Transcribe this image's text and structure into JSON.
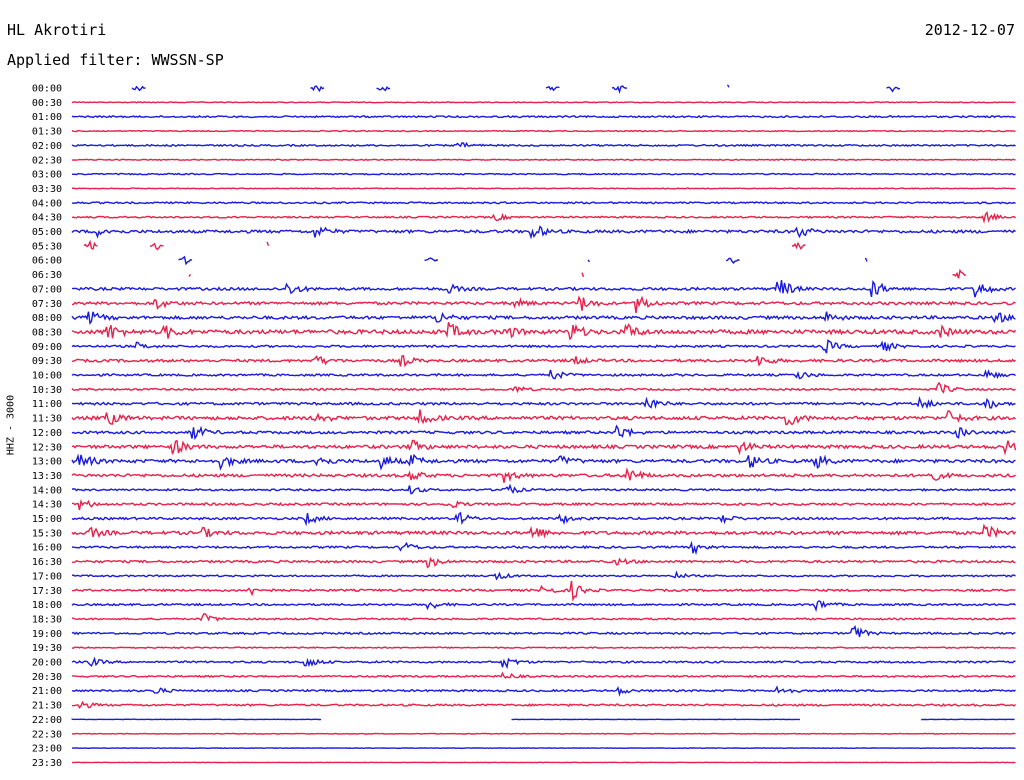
{
  "header": {
    "station": "HL Akrotiri",
    "date": "2012-12-07",
    "filter": "Applied filter: WWSSN-SP"
  },
  "channel_label": "HHZ - 3000",
  "colors": {
    "blue": "#1a1adc",
    "red": "#e8204a"
  },
  "chart_data": {
    "type": "line",
    "title": "HL Akrotiri",
    "subtitle": "Applied filter: WWSSN-SP",
    "ylabel": "HHZ - 3000",
    "xlabel": "",
    "grid": false,
    "legend": "none",
    "y_tick_labels": [
      "00:00",
      "00:30",
      "01:00",
      "01:30",
      "02:00",
      "02:30",
      "03:00",
      "03:30",
      "04:00",
      "04:30",
      "05:00",
      "05:30",
      "06:00",
      "06:30",
      "07:00",
      "07:30",
      "08:00",
      "08:30",
      "09:00",
      "09:30",
      "10:00",
      "10:30",
      "11:00",
      "11:30",
      "12:00",
      "12:30",
      "13:00",
      "13:30",
      "14:00",
      "14:30",
      "15:00",
      "15:30",
      "16:00",
      "16:30",
      "17:00",
      "17:30",
      "18:00",
      "18:30",
      "19:00",
      "19:30",
      "20:00",
      "20:30",
      "21:00",
      "21:30",
      "22:00",
      "22:30",
      "23:00",
      "23:30"
    ],
    "series": [
      {
        "label": "00:00",
        "color": "blue",
        "noise": 0.3,
        "gappy": true,
        "events": [
          [
            0.07,
            4
          ],
          [
            0.26,
            4
          ],
          [
            0.33,
            4
          ],
          [
            0.51,
            3
          ],
          [
            0.58,
            4
          ],
          [
            0.87,
            4
          ]
        ]
      },
      {
        "label": "00:30",
        "color": "red",
        "noise": 0.4,
        "events": []
      },
      {
        "label": "01:00",
        "color": "blue",
        "noise": 0.8,
        "events": []
      },
      {
        "label": "01:30",
        "color": "red",
        "noise": 0.5,
        "events": []
      },
      {
        "label": "02:00",
        "color": "blue",
        "noise": 0.8,
        "events": [
          [
            0.41,
            3
          ]
        ]
      },
      {
        "label": "02:30",
        "color": "red",
        "noise": 0.5,
        "events": []
      },
      {
        "label": "03:00",
        "color": "blue",
        "noise": 0.6,
        "events": []
      },
      {
        "label": "03:30",
        "color": "red",
        "noise": 0.4,
        "events": []
      },
      {
        "label": "04:00",
        "color": "blue",
        "noise": 0.8,
        "events": []
      },
      {
        "label": "04:30",
        "color": "red",
        "noise": 0.8,
        "events": [
          [
            0.45,
            3
          ],
          [
            0.97,
            4
          ]
        ]
      },
      {
        "label": "05:00",
        "color": "blue",
        "noise": 1.4,
        "events": [
          [
            0.03,
            4
          ],
          [
            0.26,
            6
          ],
          [
            0.49,
            7
          ],
          [
            0.77,
            6
          ]
        ]
      },
      {
        "label": "05:30",
        "color": "red",
        "noise": 1.5,
        "gappy": true,
        "events": [
          [
            0.02,
            5
          ],
          [
            0.09,
            4
          ],
          [
            0.77,
            5
          ]
        ]
      },
      {
        "label": "06:00",
        "color": "blue",
        "noise": 0.5,
        "gappy": true,
        "events": [
          [
            0.12,
            4
          ],
          [
            0.38,
            3
          ],
          [
            0.7,
            4
          ]
        ]
      },
      {
        "label": "06:30",
        "color": "red",
        "noise": 0.6,
        "gappy": true,
        "events": [
          [
            0.94,
            6
          ]
        ]
      },
      {
        "label": "07:00",
        "color": "blue",
        "noise": 1.3,
        "events": [
          [
            0.23,
            6
          ],
          [
            0.4,
            4
          ],
          [
            0.75,
            11
          ],
          [
            0.85,
            8
          ],
          [
            0.96,
            8
          ]
        ]
      },
      {
        "label": "07:30",
        "color": "red",
        "noise": 1.4,
        "events": [
          [
            0.09,
            5
          ],
          [
            0.47,
            4
          ],
          [
            0.54,
            7
          ],
          [
            0.6,
            9
          ]
        ]
      },
      {
        "label": "08:00",
        "color": "blue",
        "noise": 1.5,
        "events": [
          [
            0.02,
            6
          ],
          [
            0.39,
            5
          ],
          [
            0.8,
            5
          ],
          [
            0.98,
            5
          ]
        ]
      },
      {
        "label": "08:30",
        "color": "red",
        "noise": 2.0,
        "events": [
          [
            0.04,
            8
          ],
          [
            0.1,
            6
          ],
          [
            0.4,
            8
          ],
          [
            0.46,
            6
          ],
          [
            0.53,
            8
          ],
          [
            0.59,
            6
          ],
          [
            0.92,
            5
          ]
        ]
      },
      {
        "label": "09:00",
        "color": "blue",
        "noise": 1.0,
        "events": [
          [
            0.07,
            3
          ],
          [
            0.8,
            6
          ],
          [
            0.86,
            5
          ]
        ]
      },
      {
        "label": "09:30",
        "color": "red",
        "noise": 1.3,
        "events": [
          [
            0.26,
            5
          ],
          [
            0.35,
            5
          ],
          [
            0.53,
            5
          ],
          [
            0.73,
            5
          ]
        ]
      },
      {
        "label": "10:00",
        "color": "blue",
        "noise": 1.0,
        "events": [
          [
            0.51,
            5
          ],
          [
            0.77,
            4
          ],
          [
            0.97,
            4
          ]
        ]
      },
      {
        "label": "10:30",
        "color": "red",
        "noise": 0.9,
        "events": [
          [
            0.47,
            3
          ],
          [
            0.92,
            6
          ]
        ]
      },
      {
        "label": "11:00",
        "color": "blue",
        "noise": 1.2,
        "events": [
          [
            0.61,
            7
          ],
          [
            0.9,
            5
          ],
          [
            0.97,
            5
          ]
        ]
      },
      {
        "label": "11:30",
        "color": "red",
        "noise": 1.7,
        "events": [
          [
            0.04,
            6
          ],
          [
            0.26,
            5
          ],
          [
            0.37,
            7
          ],
          [
            0.76,
            7
          ],
          [
            0.93,
            6
          ]
        ]
      },
      {
        "label": "12:00",
        "color": "blue",
        "noise": 1.3,
        "events": [
          [
            0.13,
            7
          ],
          [
            0.58,
            7
          ],
          [
            0.94,
            5
          ]
        ]
      },
      {
        "label": "12:30",
        "color": "red",
        "noise": 1.6,
        "events": [
          [
            0.11,
            7
          ],
          [
            0.36,
            6
          ],
          [
            0.71,
            5
          ],
          [
            0.99,
            6
          ]
        ]
      },
      {
        "label": "13:00",
        "color": "blue",
        "noise": 1.6,
        "events": [
          [
            0.01,
            7
          ],
          [
            0.16,
            6
          ],
          [
            0.26,
            6
          ],
          [
            0.33,
            6
          ],
          [
            0.36,
            6
          ],
          [
            0.52,
            4
          ],
          [
            0.72,
            6
          ],
          [
            0.79,
            6
          ]
        ]
      },
      {
        "label": "13:30",
        "color": "red",
        "noise": 1.4,
        "events": [
          [
            0.36,
            5
          ],
          [
            0.46,
            6
          ],
          [
            0.59,
            8
          ],
          [
            0.91,
            6
          ]
        ]
      },
      {
        "label": "14:00",
        "color": "blue",
        "noise": 0.9,
        "events": [
          [
            0.36,
            4
          ],
          [
            0.46,
            6
          ]
        ]
      },
      {
        "label": "14:30",
        "color": "red",
        "noise": 1.1,
        "events": [
          [
            0.01,
            5
          ],
          [
            0.4,
            4
          ]
        ]
      },
      {
        "label": "15:00",
        "color": "blue",
        "noise": 1.1,
        "events": [
          [
            0.25,
            5
          ],
          [
            0.41,
            6
          ],
          [
            0.52,
            4
          ],
          [
            0.69,
            4
          ]
        ]
      },
      {
        "label": "15:30",
        "color": "red",
        "noise": 1.6,
        "events": [
          [
            0.02,
            5
          ],
          [
            0.14,
            4
          ],
          [
            0.49,
            6
          ],
          [
            0.97,
            6
          ]
        ]
      },
      {
        "label": "16:00",
        "color": "blue",
        "noise": 1.0,
        "events": [
          [
            0.35,
            6
          ],
          [
            0.66,
            5
          ]
        ]
      },
      {
        "label": "16:30",
        "color": "red",
        "noise": 1.1,
        "events": [
          [
            0.38,
            5
          ],
          [
            0.58,
            3
          ]
        ]
      },
      {
        "label": "17:00",
        "color": "blue",
        "noise": 0.8,
        "events": [
          [
            0.45,
            4
          ],
          [
            0.64,
            3
          ]
        ]
      },
      {
        "label": "17:30",
        "color": "red",
        "noise": 1.0,
        "events": [
          [
            0.19,
            4
          ],
          [
            0.5,
            5
          ],
          [
            0.53,
            9
          ]
        ]
      },
      {
        "label": "18:00",
        "color": "blue",
        "noise": 0.9,
        "events": [
          [
            0.38,
            4
          ],
          [
            0.79,
            5
          ]
        ]
      },
      {
        "label": "18:30",
        "color": "red",
        "noise": 0.8,
        "events": [
          [
            0.14,
            5
          ]
        ]
      },
      {
        "label": "19:00",
        "color": "blue",
        "noise": 0.9,
        "events": [
          [
            0.83,
            7
          ]
        ]
      },
      {
        "label": "19:30",
        "color": "red",
        "noise": 0.6,
        "events": []
      },
      {
        "label": "20:00",
        "color": "blue",
        "noise": 0.9,
        "events": [
          [
            0.02,
            4
          ],
          [
            0.25,
            5
          ],
          [
            0.46,
            5
          ]
        ]
      },
      {
        "label": "20:30",
        "color": "red",
        "noise": 0.8,
        "events": [
          [
            0.46,
            3
          ]
        ]
      },
      {
        "label": "21:00",
        "color": "blue",
        "noise": 0.9,
        "events": [
          [
            0.09,
            3
          ],
          [
            0.58,
            3
          ],
          [
            0.75,
            5
          ]
        ]
      },
      {
        "label": "21:30",
        "color": "red",
        "noise": 0.9,
        "events": [
          [
            0.01,
            4
          ]
        ]
      },
      {
        "label": "22:00",
        "color": "blue",
        "noise": 0.2,
        "segments": [
          [
            0,
            0.265
          ],
          [
            0.466,
            0.772
          ],
          [
            0.9,
            1
          ]
        ]
      },
      {
        "label": "22:30",
        "color": "red",
        "noise": 0.3,
        "events": []
      },
      {
        "label": "23:00",
        "color": "blue",
        "noise": 0.2,
        "events": []
      },
      {
        "label": "23:30",
        "color": "red",
        "noise": 0.2,
        "events": []
      }
    ]
  }
}
